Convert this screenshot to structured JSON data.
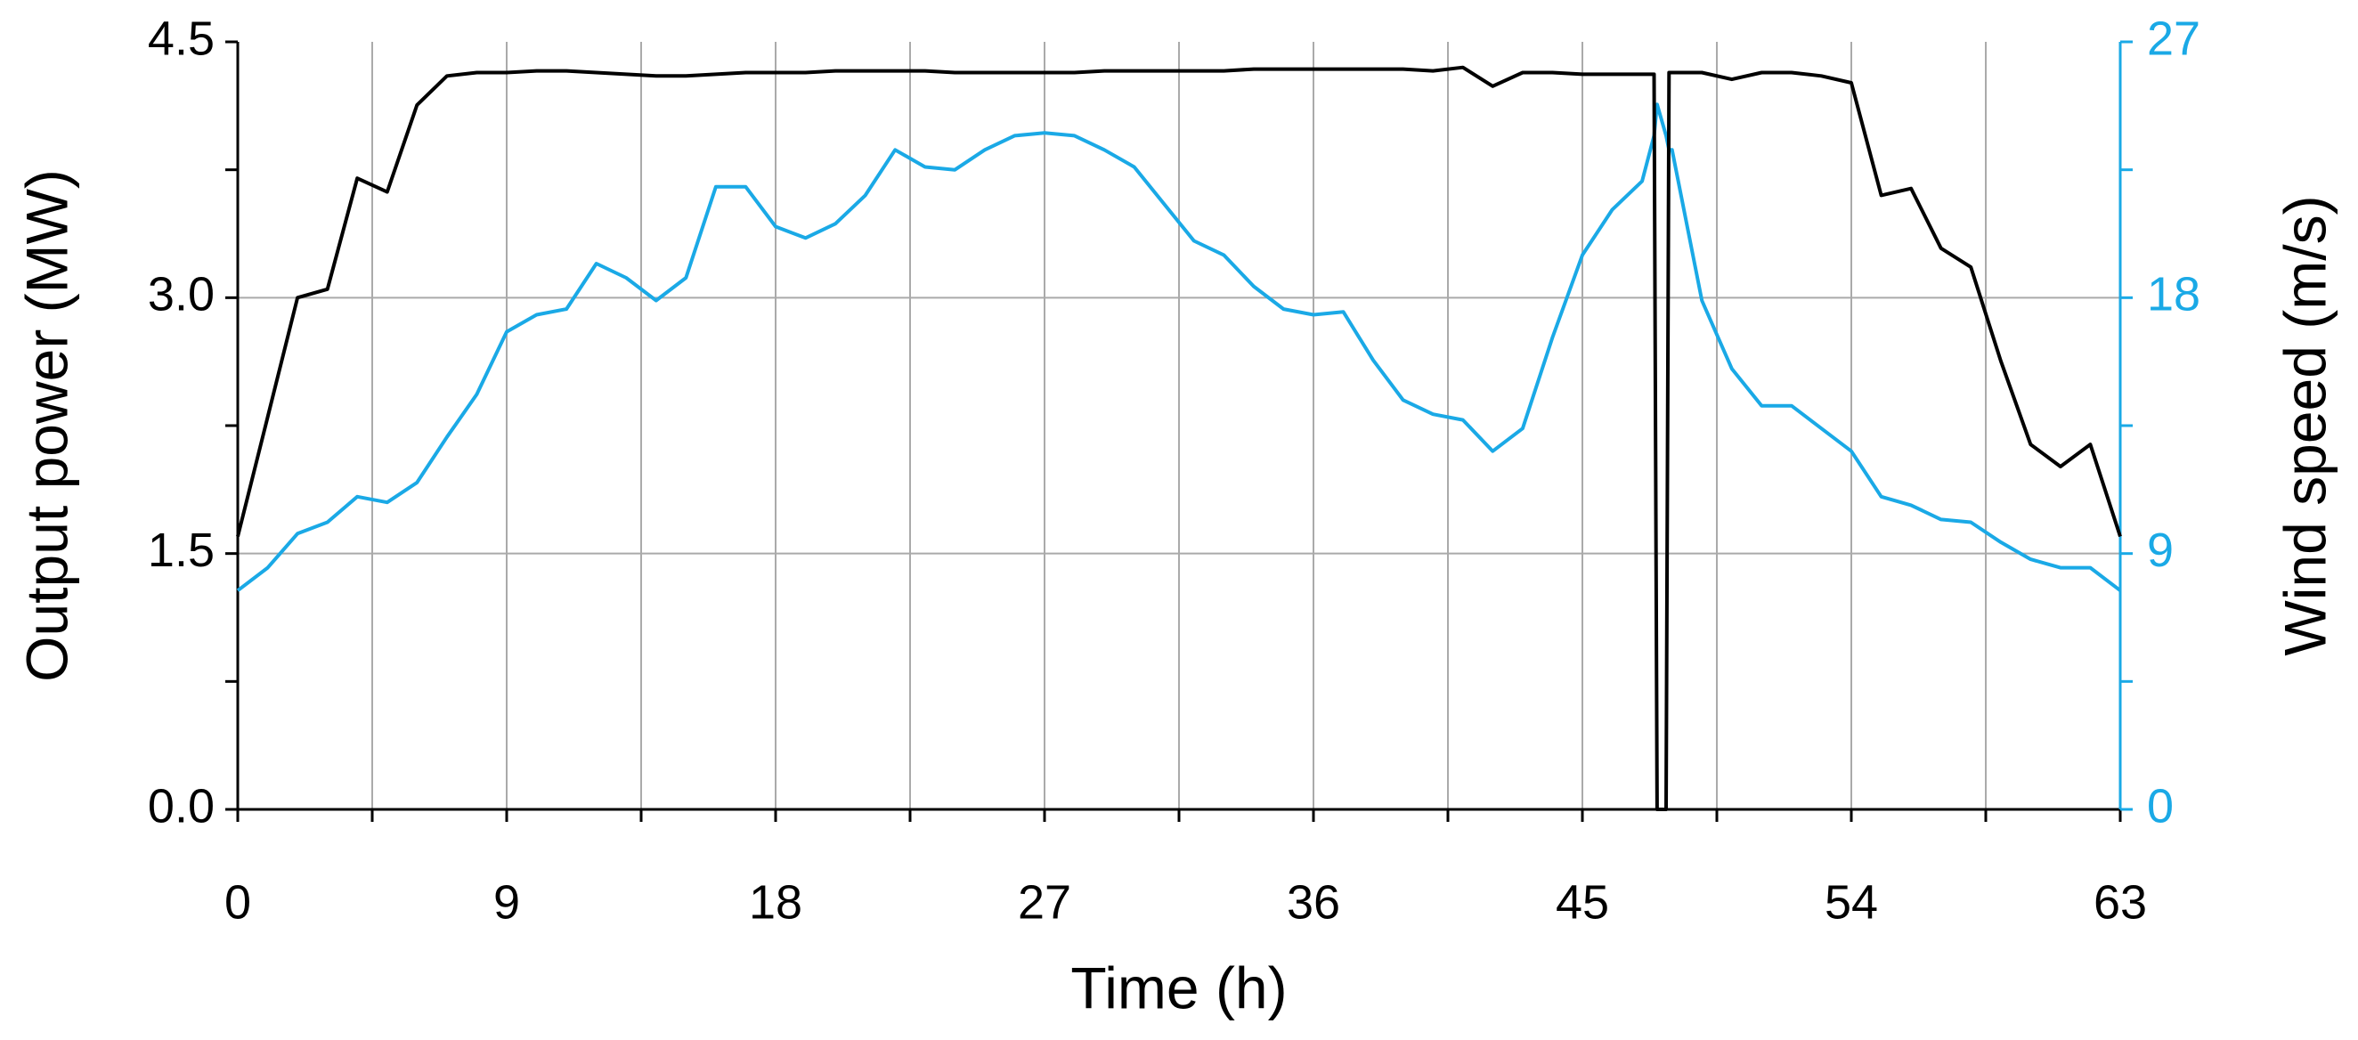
{
  "chart_data": {
    "type": "line",
    "xlabel": "Time (h)",
    "ylabel": "Output power (MW)",
    "y2label": "Wind speed (m/s)",
    "x": [
      0,
      1,
      2,
      3,
      4,
      5,
      6,
      7,
      8,
      9,
      10,
      11,
      12,
      13,
      14,
      15,
      16,
      17,
      18,
      19,
      20,
      21,
      22,
      23,
      24,
      25,
      26,
      27,
      28,
      29,
      30,
      31,
      32,
      33,
      34,
      35,
      36,
      37,
      38,
      39,
      40,
      41,
      42,
      43,
      44,
      45,
      46,
      47,
      47.4,
      47.5,
      47.8,
      47.9,
      48,
      49,
      50,
      51,
      52,
      53,
      54,
      55,
      56,
      57,
      58,
      59,
      60,
      61,
      62,
      63
    ],
    "series": [
      {
        "name": "Output power (MW)",
        "color": "#000000",
        "axis": "y",
        "values": [
          1.6,
          2.3,
          3.0,
          3.05,
          3.7,
          3.62,
          4.13,
          4.3,
          4.32,
          4.32,
          4.33,
          4.33,
          4.32,
          4.31,
          4.3,
          4.3,
          4.31,
          4.32,
          4.32,
          4.32,
          4.33,
          4.33,
          4.33,
          4.33,
          4.32,
          4.32,
          4.32,
          4.32,
          4.32,
          4.33,
          4.33,
          4.33,
          4.33,
          4.33,
          4.34,
          4.34,
          4.34,
          4.34,
          4.34,
          4.34,
          4.33,
          4.35,
          4.24,
          4.32,
          4.32,
          4.31,
          4.31,
          4.31,
          4.31,
          0,
          0,
          4.32,
          4.32,
          4.32,
          4.28,
          4.32,
          4.32,
          4.3,
          4.26,
          3.6,
          3.64,
          3.29,
          3.18,
          2.63,
          2.14,
          2.01,
          2.14,
          1.6
        ]
      },
      {
        "name": "Wind speed (m/s)",
        "color": "#1aa9e6",
        "axis": "y2",
        "values": [
          7.7,
          8.5,
          9.7,
          10.1,
          11.0,
          10.8,
          11.5,
          13.1,
          14.6,
          16.8,
          17.4,
          17.6,
          19.2,
          18.7,
          17.9,
          18.7,
          21.9,
          21.9,
          20.5,
          20.1,
          20.6,
          21.6,
          23.2,
          22.6,
          22.5,
          23.2,
          23.7,
          23.8,
          23.7,
          23.2,
          22.6,
          21.3,
          20.0,
          19.5,
          18.4,
          17.6,
          17.4,
          17.5,
          15.8,
          14.4,
          13.9,
          13.7,
          12.6,
          13.4,
          16.6,
          19.5,
          21.1,
          22.1,
          23.7,
          24.8,
          23.7,
          23.2,
          23.2,
          17.9,
          15.5,
          14.2,
          14.2,
          13.4,
          12.6,
          11.0,
          10.7,
          10.2,
          10.1,
          9.4,
          8.8,
          8.5,
          8.5,
          7.7
        ]
      }
    ],
    "xlim": [
      0,
      63
    ],
    "xticks": [
      0,
      9,
      18,
      27,
      36,
      45,
      54,
      63
    ],
    "xminorticks": [
      4.5,
      13.5,
      22.5,
      31.5,
      40.5,
      49.5,
      58.5
    ],
    "ylim": [
      0,
      4.5
    ],
    "yticks": [
      {
        "value": 0,
        "label": "0.0"
      },
      1.5,
      {
        "value": 3,
        "label": "3.0"
      },
      4.5
    ],
    "yminorticks": [
      0.75,
      2.25,
      3.75
    ],
    "y2lim": [
      0,
      27
    ],
    "y2ticks": [
      0,
      9,
      18,
      27
    ],
    "y2minorticks": [
      4.5,
      13.5,
      22.5
    ],
    "grid": true
  }
}
